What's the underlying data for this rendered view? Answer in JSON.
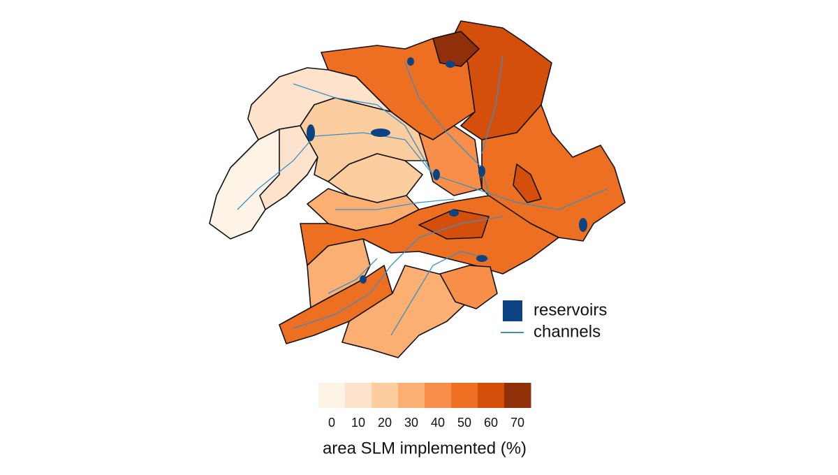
{
  "map": {
    "legend": {
      "items": [
        {
          "label": "reservoirs",
          "color": "#0b4383",
          "kind": "box"
        },
        {
          "label": "channels",
          "color": "#3a8fc7",
          "kind": "line"
        }
      ]
    },
    "colorbar": {
      "title": "area SLM implemented (%)",
      "ticks": [
        0,
        10,
        20,
        30,
        40,
        50,
        60,
        70
      ],
      "colors": [
        "#fef3e7",
        "#fde3cc",
        "#fccd9f",
        "#fbaf73",
        "#f78f4a",
        "#ed6f22",
        "#d54f0c",
        "#8f300b"
      ]
    }
  }
}
